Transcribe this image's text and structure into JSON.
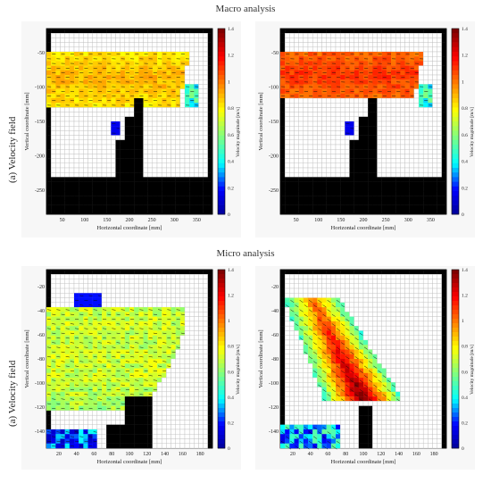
{
  "titles": {
    "macro": "Macro analysis",
    "micro": "Micro analysis"
  },
  "row_labels": {
    "macro": "(a) Velocity field",
    "micro": "(a) Velocity field"
  },
  "colors": {
    "jet": [
      "#00008f",
      "#0000ff",
      "#00ffff",
      "#80ff80",
      "#ffff00",
      "#ff8000",
      "#ff0000",
      "#800000"
    ],
    "obstacle": "#000000",
    "grid_line": "#bdbdbd",
    "panel_bg": "#f7f7f7"
  },
  "panels": [
    {
      "xlabel": "Horizontal coordinate [mm]",
      "ylabel": "Vertical coordinate [mm]",
      "cbar_label": "Velocity magnitude [m/s]",
      "xticks": [
        "50",
        "100",
        "150",
        "200",
        "250",
        "300",
        "350"
      ],
      "yticks": [
        "-50",
        "-100",
        "-150",
        "-200",
        "-250"
      ],
      "cticks": [
        "1.4",
        "1.2",
        "1",
        "0.8",
        "0.6",
        "0.4",
        "0.2",
        "0"
      ],
      "flow": "yellow-green jet, broad"
    },
    {
      "xlabel": "Horizontal coordinate [mm]",
      "ylabel": "Vertical coordinate [mm]",
      "cbar_label": "Velocity magnitude [m/s]",
      "xticks": [
        "50",
        "100",
        "150",
        "200",
        "250",
        "300",
        "350"
      ],
      "yticks": [
        "-50",
        "-100",
        "-150",
        "-200",
        "-250"
      ],
      "cticks": [
        "1.4",
        "1.2",
        "1",
        "0.8",
        "0.6",
        "0.4",
        "0.2",
        "0"
      ],
      "flow": "orange-red jet, faster"
    },
    {
      "xlabel": "Horizontal coordinate [mm]",
      "ylabel": "Vertical coordinate [mm]",
      "cbar_label": "Velocity magnitude [m/s]",
      "xticks": [
        "20",
        "40",
        "60",
        "80",
        "100",
        "120",
        "140",
        "160",
        "180"
      ],
      "yticks": [
        "-20",
        "-40",
        "-60",
        "-80",
        "-100",
        "-120",
        "-140"
      ],
      "cticks": [
        "1.4",
        "1.2",
        "1",
        "0.8",
        "0.6",
        "0.4",
        "0.2",
        "0"
      ],
      "flow": "green-yellow broad field"
    },
    {
      "xlabel": "Horizontal coordinate [mm]",
      "ylabel": "Vertical coordinate [mm]",
      "cbar_label": "Velocity magnitude [m/s]",
      "xticks": [
        "20",
        "40",
        "60",
        "80",
        "100",
        "120",
        "140",
        "160",
        "180"
      ],
      "yticks": [
        "-20",
        "-40",
        "-60",
        "-80",
        "-100",
        "-120",
        "-140"
      ],
      "cticks": [
        "1.4",
        "1.2",
        "1",
        "0.8",
        "0.6",
        "0.4",
        "0.2",
        "0"
      ],
      "flow": "diagonal jet, red core"
    }
  ]
}
